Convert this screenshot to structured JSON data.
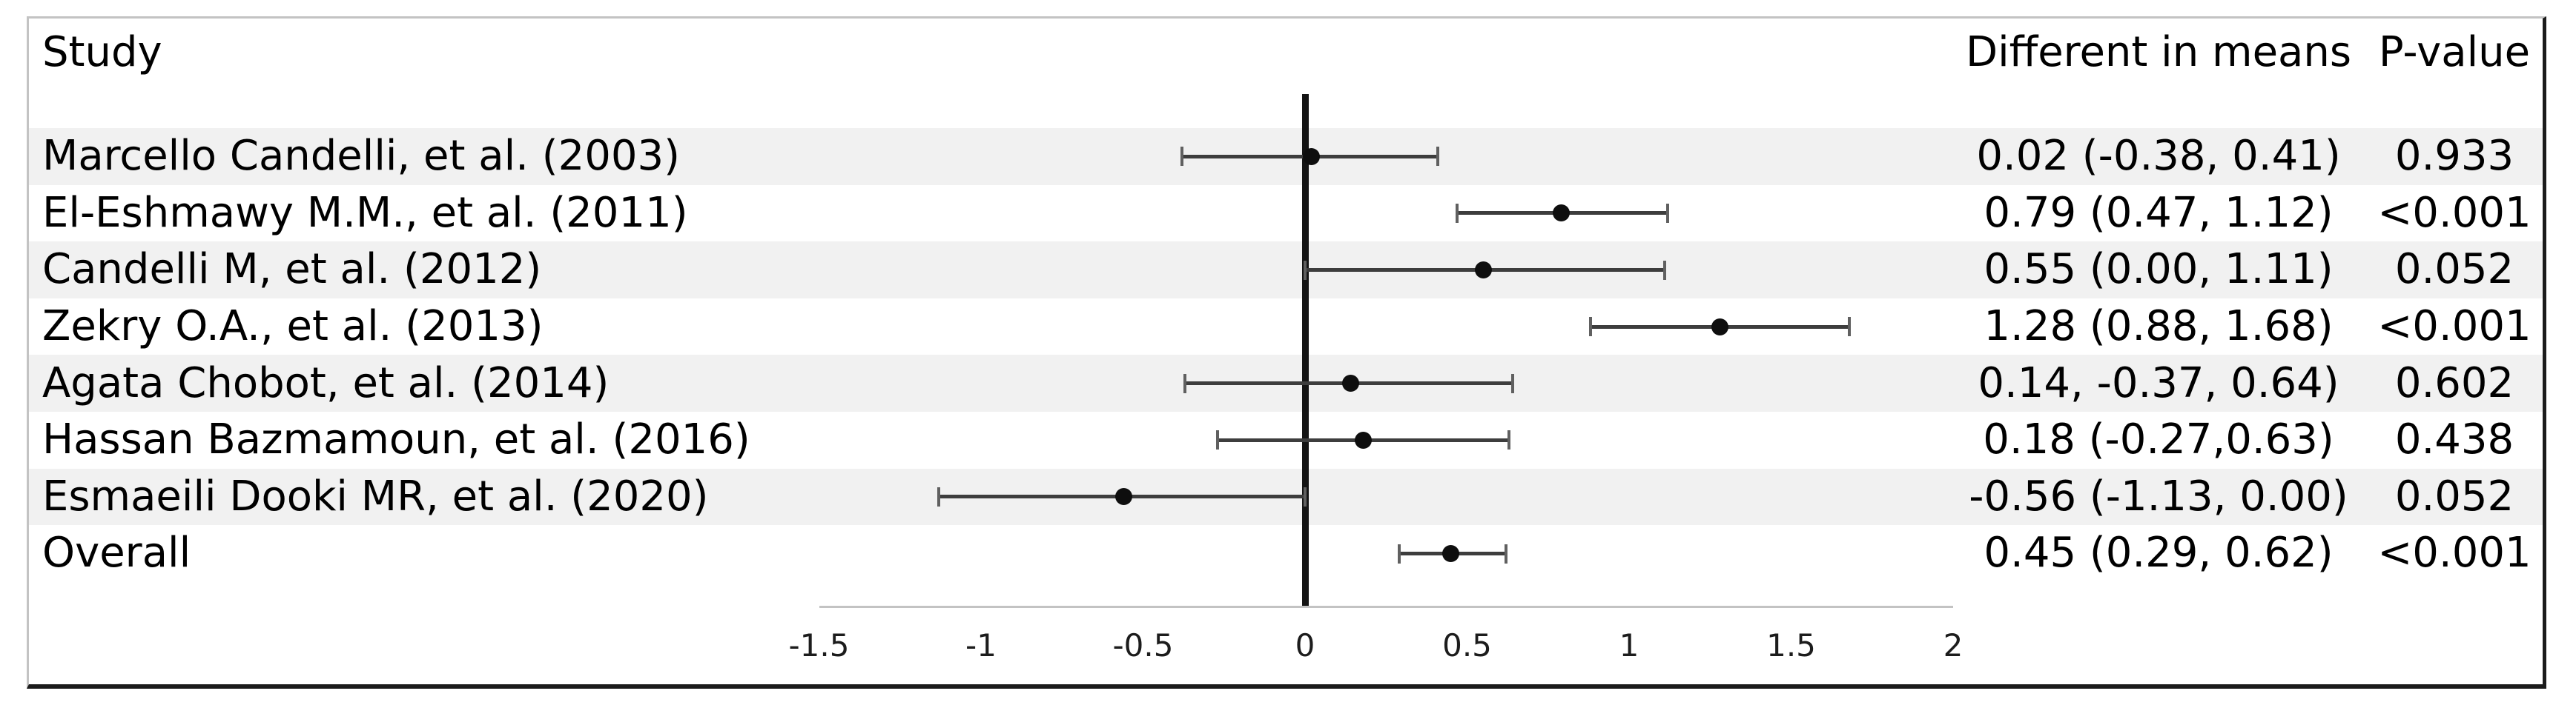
{
  "columns": {
    "study": "Study",
    "diff": "Different in means",
    "pvalue": "P-value"
  },
  "chart_data": {
    "type": "scatter",
    "subtype": "forest-plot",
    "orientation": "horizontal",
    "title": "",
    "legend": null,
    "x_axis": {
      "min": -1.5,
      "max": 2,
      "ticks": [
        -1.5,
        -1,
        -0.5,
        0,
        0.5,
        1,
        1.5,
        2
      ],
      "tick_labels": [
        "-1.5",
        "-1",
        "-0.5",
        "0",
        "0.5",
        "1",
        "1.5",
        "2"
      ],
      "zero_reference_line": 0,
      "grid": false
    },
    "rows": [
      {
        "study": "Marcello Candelli, et al. (2003)",
        "mean": 0.02,
        "ci_low": -0.38,
        "ci_high": 0.41,
        "diff_label": "0.02 (-0.38, 0.41)",
        "p_value": "0.933"
      },
      {
        "study": "El-Eshmawy M.M., et al. (2011)",
        "mean": 0.79,
        "ci_low": 0.47,
        "ci_high": 1.12,
        "diff_label": "0.79 (0.47, 1.12)",
        "p_value": "<0.001"
      },
      {
        "study": "Candelli M, et al. (2012)",
        "mean": 0.55,
        "ci_low": 0.0,
        "ci_high": 1.11,
        "diff_label": "0.55 (0.00, 1.11)",
        "p_value": "0.052"
      },
      {
        "study": "Zekry O.A., et al. (2013)",
        "mean": 1.28,
        "ci_low": 0.88,
        "ci_high": 1.68,
        "diff_label": "1.28 (0.88, 1.68)",
        "p_value": "<0.001"
      },
      {
        "study": "Agata Chobot, et al. (2014)",
        "mean": 0.14,
        "ci_low": -0.37,
        "ci_high": 0.64,
        "diff_label": "0.14, -0.37, 0.64)",
        "p_value": "0.602"
      },
      {
        "study": "Hassan Bazmamoun, et al. (2016)",
        "mean": 0.18,
        "ci_low": -0.27,
        "ci_high": 0.63,
        "diff_label": "0.18 (-0.27,0.63)",
        "p_value": "0.438"
      },
      {
        "study": "Esmaeili Dooki MR, et al. (2020)",
        "mean": -0.56,
        "ci_low": -1.13,
        "ci_high": 0.0,
        "diff_label": "-0.56 (-1.13, 0.00)",
        "p_value": "0.052"
      },
      {
        "study": "Overall",
        "mean": 0.45,
        "ci_low": 0.29,
        "ci_high": 0.62,
        "diff_label": "0.45 (0.29, 0.62)",
        "p_value": "<0.001"
      }
    ]
  },
  "colors": {
    "marker": "#0e0e0e",
    "error_bar": "#3d3d3d",
    "error_bar_cap": "#606060",
    "row_stripe": "#f1f1f1",
    "zero_line": "#141414",
    "axis_line": "#c3c3c3",
    "border_light": "#c3c3c3",
    "border_dark": "#1b1b1b",
    "text": "#000000"
  }
}
